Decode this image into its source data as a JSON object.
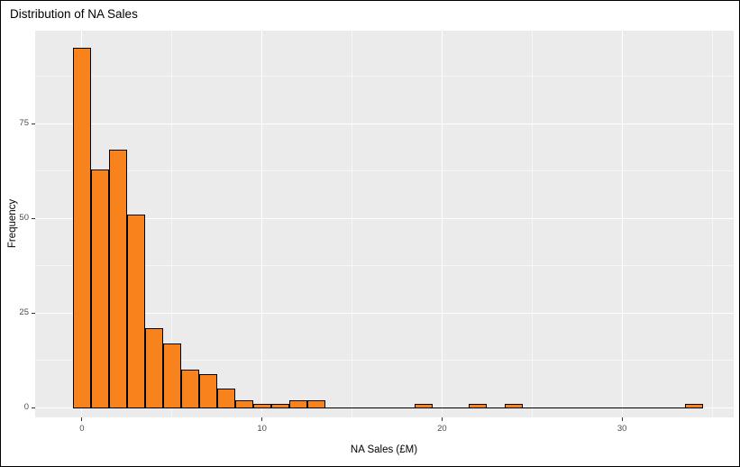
{
  "chart_data": {
    "type": "bar",
    "subtype": "histogram",
    "title": "Distribution of NA Sales",
    "xlabel": "NA Sales (£M)",
    "ylabel": "Frequency",
    "bin_width": 1,
    "categories": [
      0,
      1,
      2,
      3,
      4,
      5,
      6,
      7,
      8,
      9,
      10,
      11,
      12,
      13,
      14,
      15,
      16,
      17,
      18,
      19,
      20,
      21,
      22,
      23,
      24,
      25,
      26,
      27,
      28,
      29,
      30,
      31,
      32,
      33,
      34
    ],
    "values": [
      95,
      63,
      68,
      51,
      21,
      17,
      10,
      9,
      5,
      2,
      1,
      1,
      2,
      2,
      0,
      0,
      0,
      0,
      0,
      1,
      0,
      0,
      1,
      0,
      1,
      0,
      0,
      0,
      0,
      0,
      0,
      0,
      0,
      0,
      1
    ],
    "x_ticks": [
      0,
      10,
      20,
      30
    ],
    "y_ticks": [
      0,
      25,
      50,
      75
    ],
    "x_minor_ticks": [
      5,
      15,
      25,
      35
    ],
    "y_minor_ticks": [
      12.5,
      37.5,
      62.5,
      87.5
    ],
    "xlim": [
      -2.6,
      36.2
    ],
    "ylim": [
      -2.5,
      99.5
    ],
    "grid": "on",
    "legend": "none",
    "colors": {
      "bar_fill": "#F8831D",
      "bar_border": "#000000",
      "panel_bg": "#EBEBEB",
      "grid": "#FFFFFF",
      "tick_label": "#4D4D4D",
      "text": "#000000"
    }
  }
}
